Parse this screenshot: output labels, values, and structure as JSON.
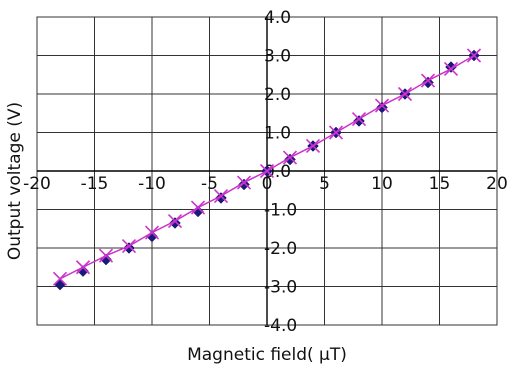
{
  "chart_data": {
    "type": "scatter",
    "title": "",
    "xlabel": "Magnetic field( μT)",
    "ylabel": "Output voltage  (V)",
    "xlim": [
      -20,
      20
    ],
    "ylim": [
      -4.0,
      4.0
    ],
    "x_ticks": [
      -20,
      -15,
      -10,
      -5,
      0,
      5,
      10,
      15,
      20
    ],
    "y_ticks": [
      4.0,
      3.0,
      2.0,
      1.0,
      0.0,
      -1.0,
      -2.0,
      -3.0,
      -4.0
    ],
    "x_tick_labels": [
      "-20",
      "-15",
      "-10",
      "-5",
      "0",
      "5",
      "10",
      "15",
      "20"
    ],
    "y_tick_labels": [
      "4.0",
      "3.0",
      "2.0",
      "1.0",
      "0.0",
      "-1.0",
      "-2.0",
      "-3.0",
      "-4.0"
    ],
    "grid": true,
    "series": [
      {
        "marker": "diamond",
        "color": "#1a1a7a",
        "line": false,
        "x": [
          -18,
          -16,
          -14,
          -12,
          -10,
          -8,
          -6,
          -4,
          -2,
          0,
          2,
          4,
          6,
          8,
          10,
          12,
          14,
          16,
          18
        ],
        "y": [
          -2.95,
          -2.6,
          -2.3,
          -2.0,
          -1.7,
          -1.35,
          -1.05,
          -0.7,
          -0.35,
          0.0,
          0.3,
          0.65,
          1.0,
          1.3,
          1.65,
          2.0,
          2.3,
          2.7,
          3.0
        ]
      },
      {
        "marker": "x",
        "color": "#cc33cc",
        "line": true,
        "x": [
          -18,
          -16,
          -14,
          -12,
          -10,
          -8,
          -6,
          -4,
          -2,
          0,
          2,
          4,
          6,
          8,
          10,
          12,
          14,
          16,
          18
        ],
        "y": [
          -2.8,
          -2.5,
          -2.2,
          -1.95,
          -1.6,
          -1.3,
          -0.95,
          -0.65,
          -0.3,
          0.0,
          0.35,
          0.65,
          1.0,
          1.35,
          1.7,
          2.0,
          2.35,
          2.65,
          3.0
        ]
      }
    ]
  }
}
